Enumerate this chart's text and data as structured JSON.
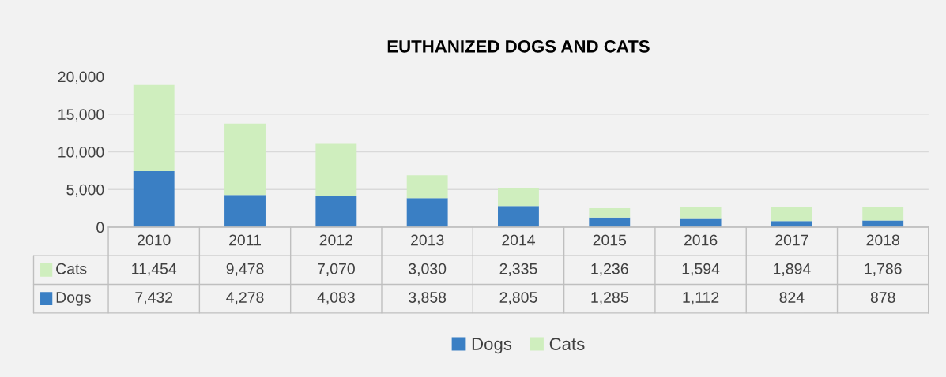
{
  "chart_data": {
    "type": "bar",
    "title": "EUTHANIZED DOGS AND CATS",
    "categories": [
      "2010",
      "2011",
      "2012",
      "2013",
      "2014",
      "2015",
      "2016",
      "2017",
      "2018"
    ],
    "series": [
      {
        "name": "Dogs",
        "color": "#3a7fc4",
        "values": [
          7432,
          4278,
          4083,
          3858,
          2805,
          1285,
          1112,
          824,
          878
        ],
        "value_labels": [
          "7,432",
          "4,278",
          "4,083",
          "3,858",
          "2,805",
          "1,285",
          "1,112",
          "824",
          "878"
        ]
      },
      {
        "name": "Cats",
        "color": "#cfeebe",
        "values": [
          11454,
          9478,
          7070,
          3030,
          2335,
          1236,
          1594,
          1894,
          1786
        ],
        "value_labels": [
          "11,454",
          "9,478",
          "7,070",
          "3,030",
          "2,335",
          "1,236",
          "1,594",
          "1,894",
          "1,786"
        ]
      }
    ],
    "stacked": true,
    "ylim": [
      0,
      20000
    ],
    "yticks": [
      0,
      {
        "value": 5000,
        "label": "5,000"
      },
      {
        "value": 10000,
        "label": "10,000"
      },
      {
        "value": 15000,
        "label": "15,000"
      },
      {
        "value": 20000,
        "label": "20,000"
      }
    ],
    "grid": "y",
    "legend": "bottom"
  }
}
